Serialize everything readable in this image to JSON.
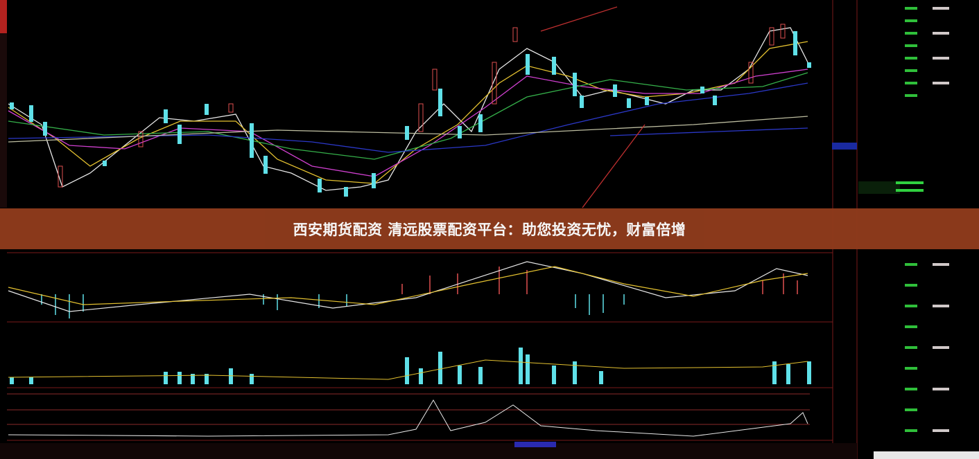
{
  "banner": {
    "title": "西安期货配资 清远股票配资平台：助您投资无忧，财富倍增"
  }
}
